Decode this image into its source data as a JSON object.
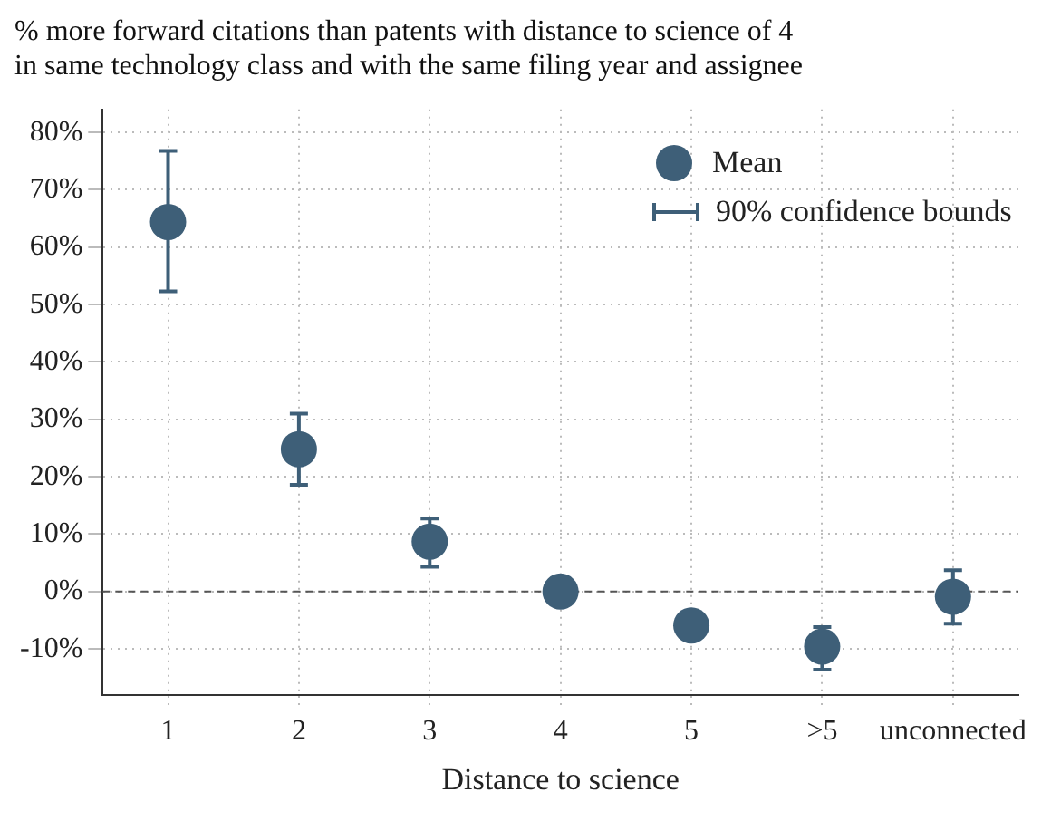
{
  "chart_data": {
    "type": "scatter",
    "title": "% more forward citations than patents with distance to science of 4",
    "subtitle": "in same technology class and with the same filing year and assignee",
    "xlabel": "Distance to science",
    "categories": [
      "1",
      "2",
      "3",
      "4",
      "5",
      ">5",
      "unconnected"
    ],
    "series": [
      {
        "name": "Mean",
        "color": "#3e5f78",
        "values": [
          64.4,
          24.8,
          8.7,
          0,
          -5.9,
          -9.6,
          -0.9
        ],
        "errors": [
          [
            52.3,
            76.8
          ],
          [
            18.6,
            31
          ],
          [
            4.3,
            12.7
          ],
          null,
          null,
          [
            -13.6,
            -6.2
          ],
          [
            -5.6,
            3.7
          ]
        ]
      }
    ],
    "annotations": [
      "90% confidence bounds"
    ],
    "ylim": [
      -18,
      84
    ],
    "yticks": [
      {
        "value": -10,
        "label": "-10%"
      },
      {
        "value": 0,
        "label": "0%"
      },
      {
        "value": 10,
        "label": "10%"
      },
      {
        "value": 20,
        "label": "20%"
      },
      {
        "value": 30,
        "label": "30%"
      },
      {
        "value": 40,
        "label": "40%"
      },
      {
        "value": 50,
        "label": "50%"
      },
      {
        "value": 60,
        "label": "60%"
      },
      {
        "value": 70,
        "label": "70%"
      },
      {
        "value": 80,
        "label": "80%"
      }
    ],
    "ref_lines": [
      {
        "axis": "y",
        "value": 0,
        "line_style": "dashed",
        "color": "#555555"
      }
    ],
    "grid": true,
    "legend": "top right",
    "marker": "circle"
  }
}
